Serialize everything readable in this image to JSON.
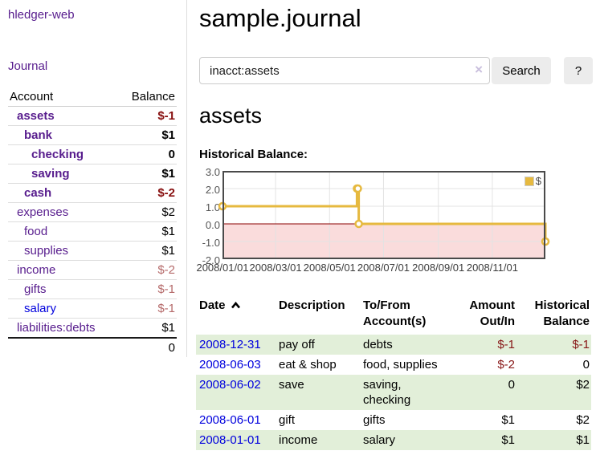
{
  "app": {
    "title": "hledger-web"
  },
  "colors": {
    "visited_link": "#571c8d",
    "unvisited_link": "#0000dd",
    "negative_strong": "#870f0f",
    "negative_soft": "#b56a6a",
    "stripe_green": "#e2efd9"
  },
  "sidebar": {
    "journal_link": "Journal",
    "table": {
      "account_header": "Account",
      "balance_header": "Balance",
      "rows": [
        {
          "name": "assets",
          "balance": "$-1",
          "indent": 1,
          "bold": true,
          "negative_style": "strong",
          "link": "visited"
        },
        {
          "name": "bank",
          "balance": "$1",
          "indent": 2,
          "bold": true,
          "negative_style": "",
          "link": "visited"
        },
        {
          "name": "checking",
          "balance": "0",
          "indent": 3,
          "bold": true,
          "negative_style": "",
          "link": "visited"
        },
        {
          "name": "saving",
          "balance": "$1",
          "indent": 3,
          "bold": true,
          "negative_style": "",
          "link": "visited"
        },
        {
          "name": "cash",
          "balance": "$-2",
          "indent": 2,
          "bold": true,
          "negative_style": "strong",
          "link": "visited"
        },
        {
          "name": "expenses",
          "balance": "$2",
          "indent": 1,
          "bold": false,
          "negative_style": "",
          "link": "visited"
        },
        {
          "name": "food",
          "balance": "$1",
          "indent": 2,
          "bold": false,
          "negative_style": "",
          "link": "visited"
        },
        {
          "name": "supplies",
          "balance": "$1",
          "indent": 2,
          "bold": false,
          "negative_style": "",
          "link": "visited"
        },
        {
          "name": "income",
          "balance": "$-2",
          "indent": 1,
          "bold": false,
          "negative_style": "soft",
          "link": "visited"
        },
        {
          "name": "gifts",
          "balance": "$-1",
          "indent": 2,
          "bold": false,
          "negative_style": "soft",
          "link": "visited"
        },
        {
          "name": "salary",
          "balance": "$-1",
          "indent": 2,
          "bold": false,
          "negative_style": "soft",
          "link": "unvisited"
        },
        {
          "name": "liabilities:debts",
          "balance": "$1",
          "indent": 1,
          "bold": false,
          "negative_style": "",
          "link": "visited"
        }
      ],
      "total": "0"
    }
  },
  "main": {
    "title": "sample.journal",
    "search": {
      "value": "inacct:assets",
      "clear_icon": "×",
      "button_label": "Search",
      "help_label": "?"
    },
    "account_heading": "assets",
    "chart_label": "Historical Balance:"
  },
  "chart_data": {
    "type": "line",
    "style": "step-after",
    "title": "Historical Balance",
    "series": [
      {
        "name": "$",
        "color": "#e6b93f",
        "points": [
          {
            "date": "2008-01-01",
            "value": 1
          },
          {
            "date": "2008-06-01",
            "value": 2
          },
          {
            "date": "2008-06-02",
            "value": 2
          },
          {
            "date": "2008-06-03",
            "value": 0
          },
          {
            "date": "2008-12-31",
            "value": -1
          }
        ]
      }
    ],
    "x_ticks": [
      "2008/01/01",
      "2008/03/01",
      "2008/05/01",
      "2008/07/01",
      "2008/09/01",
      "2008/11/01"
    ],
    "y_ticks": [
      3.0,
      2.0,
      1.0,
      0.0,
      -1.0,
      -2.0
    ],
    "xlim": [
      "2008-01-01",
      "2008-12-31"
    ],
    "ylim": [
      -2,
      3
    ],
    "grid": true,
    "legend_position": "top-right",
    "negative_fill": "#fadcdc",
    "zero_line_color": "#8b0000"
  },
  "register": {
    "headers": {
      "date": "Date",
      "sort_icon": "chevron-up",
      "description": "Description",
      "accounts": "To/From Account(s)",
      "amount": "Amount Out/In",
      "balance": "Historical Balance"
    },
    "rows": [
      {
        "date": "2008-12-31",
        "description": "pay off",
        "accounts": "debts",
        "amount": "$-1",
        "balance": "$-1"
      },
      {
        "date": "2008-06-03",
        "description": "eat & shop",
        "accounts": "food, supplies",
        "amount": "$-2",
        "balance": "0"
      },
      {
        "date": "2008-06-02",
        "description": "save",
        "accounts": "saving, checking",
        "amount": "0",
        "balance": "$2"
      },
      {
        "date": "2008-06-01",
        "description": "gift",
        "accounts": "gifts",
        "amount": "$1",
        "balance": "$2"
      },
      {
        "date": "2008-01-01",
        "description": "income",
        "accounts": "salary",
        "amount": "$1",
        "balance": "$1"
      }
    ]
  }
}
